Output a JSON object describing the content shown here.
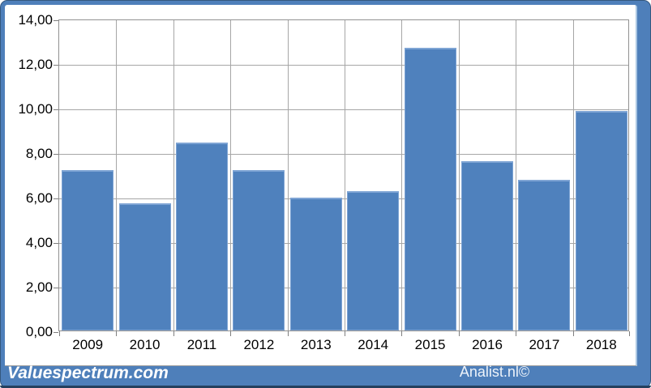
{
  "chart_data": {
    "type": "bar",
    "title": "",
    "xlabel": "",
    "ylabel": "",
    "categories": [
      "2009",
      "2010",
      "2011",
      "2012",
      "2013",
      "2014",
      "2015",
      "2016",
      "2017",
      "2018"
    ],
    "values": [
      7.2,
      5.7,
      8.45,
      7.2,
      5.95,
      6.25,
      12.7,
      7.6,
      6.75,
      9.85
    ],
    "ylim": [
      0,
      14
    ],
    "ytick_step": 2,
    "ytick_labels": [
      "0,00",
      "2,00",
      "4,00",
      "6,00",
      "8,00",
      "10,00",
      "12,00",
      "14,00"
    ],
    "grid": true,
    "legend": "none",
    "bar_color": "#4F81BD",
    "bar_edge_color": "#7EA4D4",
    "gridline_color": "#A6A6A6",
    "plot_border_color": "#919191"
  },
  "footer": {
    "left_brand": "Valuespectrum.com",
    "right_brand": "Analist.nl©"
  },
  "colors": {
    "frame_blue": "#4E7FBA",
    "frame_dark_edge": "#24405E",
    "axis_text": "#000000"
  }
}
